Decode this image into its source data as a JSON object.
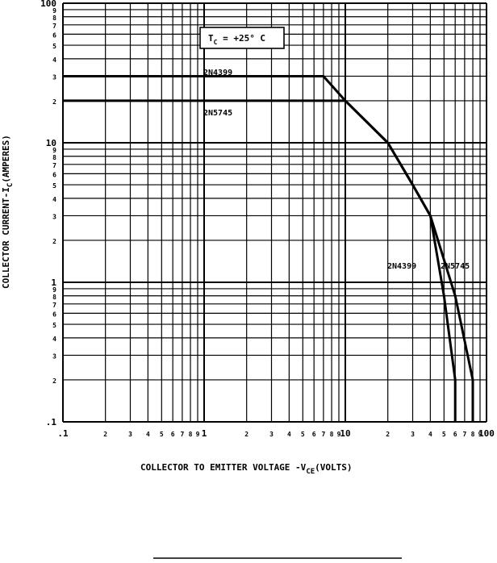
{
  "chart_data": {
    "type": "line",
    "x_scale": "log",
    "y_scale": "log",
    "xlim": [
      0.1,
      100
    ],
    "ylim": [
      0.1,
      100
    ],
    "grid": true,
    "x_tick_labels": [
      {
        "v": 0.1,
        "t": ".1"
      },
      {
        "v": 0.2,
        "t": "2"
      },
      {
        "v": 0.3,
        "t": "3"
      },
      {
        "v": 0.4,
        "t": "4"
      },
      {
        "v": 0.5,
        "t": "5"
      },
      {
        "v": 0.6,
        "t": "6"
      },
      {
        "v": 0.7,
        "t": "7"
      },
      {
        "v": 0.8,
        "t": "8"
      },
      {
        "v": 0.9,
        "t": "9"
      },
      {
        "v": 1,
        "t": "1"
      },
      {
        "v": 2,
        "t": "2"
      },
      {
        "v": 3,
        "t": "3"
      },
      {
        "v": 4,
        "t": "4"
      },
      {
        "v": 5,
        "t": "5"
      },
      {
        "v": 6,
        "t": "6"
      },
      {
        "v": 7,
        "t": "7"
      },
      {
        "v": 8,
        "t": "8"
      },
      {
        "v": 9,
        "t": "9"
      },
      {
        "v": 10,
        "t": "10"
      },
      {
        "v": 20,
        "t": "2"
      },
      {
        "v": 30,
        "t": "3"
      },
      {
        "v": 40,
        "t": "4"
      },
      {
        "v": 50,
        "t": "5"
      },
      {
        "v": 60,
        "t": "6"
      },
      {
        "v": 70,
        "t": "7"
      },
      {
        "v": 80,
        "t": "8"
      },
      {
        "v": 90,
        "t": "9"
      },
      {
        "v": 100,
        "t": "100"
      }
    ],
    "y_tick_labels": [
      {
        "v": 0.1,
        "t": ".1"
      },
      {
        "v": 0.2,
        "t": "2"
      },
      {
        "v": 0.3,
        "t": "3"
      },
      {
        "v": 0.4,
        "t": "4"
      },
      {
        "v": 0.5,
        "t": "5"
      },
      {
        "v": 0.6,
        "t": "6"
      },
      {
        "v": 0.7,
        "t": "7"
      },
      {
        "v": 0.8,
        "t": "8"
      },
      {
        "v": 0.9,
        "t": "9"
      },
      {
        "v": 1,
        "t": "1"
      },
      {
        "v": 2,
        "t": "2"
      },
      {
        "v": 3,
        "t": "3"
      },
      {
        "v": 4,
        "t": "4"
      },
      {
        "v": 5,
        "t": "5"
      },
      {
        "v": 6,
        "t": "6"
      },
      {
        "v": 7,
        "t": "7"
      },
      {
        "v": 8,
        "t": "8"
      },
      {
        "v": 9,
        "t": "9"
      },
      {
        "v": 10,
        "t": "10"
      },
      {
        "v": 20,
        "t": "2"
      },
      {
        "v": 30,
        "t": "3"
      },
      {
        "v": 40,
        "t": "4"
      },
      {
        "v": 50,
        "t": "5"
      },
      {
        "v": 60,
        "t": "6"
      },
      {
        "v": 70,
        "t": "7"
      },
      {
        "v": 80,
        "t": "8"
      },
      {
        "v": 90,
        "t": "9"
      },
      {
        "v": 100,
        "t": "100"
      }
    ],
    "xlabel_main": "COLLECTOR TO EMITTER VOLTAGE -V",
    "xlabel_sub": "CE",
    "xlabel_end": "(VOLTS)",
    "ylabel_main": "COLLECTOR CURRENT-I",
    "ylabel_sub": "C",
    "ylabel_end": "(AMPERES)",
    "annotation_main": "T",
    "annotation_sub": "C",
    "annotation_end": " = +25° C",
    "series": [
      {
        "name": "2N4399",
        "points": [
          [
            0.1,
            30
          ],
          [
            7,
            30
          ],
          [
            10,
            20
          ],
          [
            20,
            10
          ],
          [
            30,
            5
          ],
          [
            40,
            3
          ],
          [
            50,
            0.8
          ],
          [
            60,
            0.2
          ],
          [
            60,
            0.1
          ]
        ]
      },
      {
        "name": "2N5745",
        "points": [
          [
            0.1,
            20
          ],
          [
            10,
            20
          ],
          [
            20,
            10
          ],
          [
            30,
            5
          ],
          [
            40,
            3
          ],
          [
            60,
            0.8
          ],
          [
            80,
            0.2
          ],
          [
            80,
            0.1
          ]
        ]
      }
    ],
    "series_labels_top": [
      "2N4399",
      "2N5745"
    ],
    "series_labels_right": [
      "2N4399",
      "2N5745"
    ]
  }
}
